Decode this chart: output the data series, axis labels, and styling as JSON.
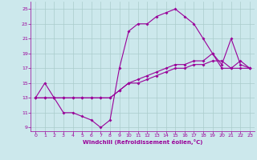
{
  "xlabel": "Windchill (Refroidissement éolien,°C)",
  "xlim": [
    -0.5,
    23.5
  ],
  "ylim": [
    8.5,
    26
  ],
  "yticks": [
    9,
    11,
    13,
    15,
    17,
    19,
    21,
    23,
    25
  ],
  "xticks": [
    0,
    1,
    2,
    3,
    4,
    5,
    6,
    7,
    8,
    9,
    10,
    11,
    12,
    13,
    14,
    15,
    16,
    17,
    18,
    19,
    20,
    21,
    22,
    23
  ],
  "background_color": "#cce8ec",
  "grid_color": "#aacccc",
  "line_color": "#990099",
  "series1_x": [
    0,
    1,
    2,
    3,
    4,
    5,
    6,
    7,
    8,
    9,
    10,
    11,
    12,
    13,
    14,
    15,
    16,
    17,
    18,
    19,
    20,
    21,
    22,
    23
  ],
  "series1_y": [
    13,
    15,
    13,
    11,
    11,
    10.5,
    10,
    9,
    10,
    17,
    22,
    23,
    23,
    24,
    24.5,
    25,
    24,
    23,
    21,
    19,
    17,
    17,
    18,
    17
  ],
  "series2_x": [
    0,
    1,
    2,
    3,
    4,
    5,
    6,
    7,
    8,
    9,
    10,
    11,
    12,
    13,
    14,
    15,
    16,
    17,
    18,
    19,
    20,
    21,
    22,
    23
  ],
  "series2_y": [
    13,
    13,
    13,
    13,
    13,
    13,
    13,
    13,
    13,
    14,
    15,
    15.5,
    16,
    16.5,
    17,
    17.5,
    17.5,
    18,
    18,
    19,
    17.5,
    21,
    17.5,
    17
  ],
  "series3_x": [
    0,
    1,
    2,
    3,
    4,
    5,
    6,
    7,
    8,
    9,
    10,
    11,
    12,
    13,
    14,
    15,
    16,
    17,
    18,
    19,
    20,
    21,
    22,
    23
  ],
  "series3_y": [
    13,
    13,
    13,
    13,
    13,
    13,
    13,
    13,
    13,
    14,
    15,
    15,
    15.5,
    16,
    16.5,
    17,
    17,
    17.5,
    17.5,
    18,
    18,
    17,
    17,
    17
  ]
}
